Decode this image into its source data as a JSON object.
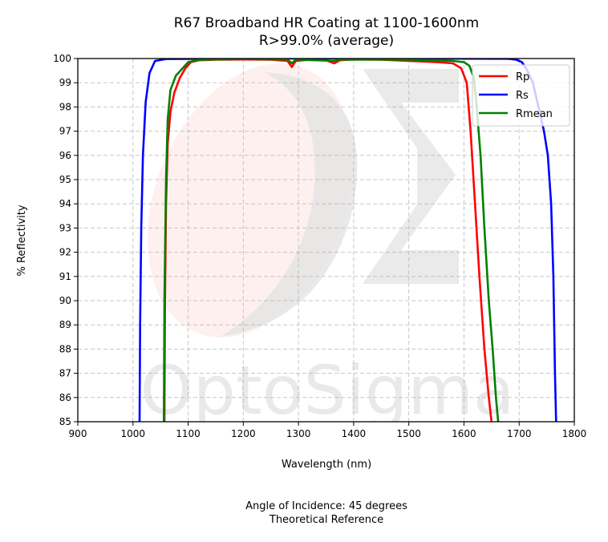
{
  "chart_data": {
    "type": "line",
    "title": "R67 Broadband HR Coating at 1100-1600nm",
    "subtitle": "R>99.0% (average)",
    "xlabel": "Wavelength (nm)",
    "ylabel": "% Reflectivity",
    "xlim": [
      900,
      1800
    ],
    "ylim": [
      85,
      100
    ],
    "xticks": [
      900,
      1000,
      1100,
      1200,
      1300,
      1400,
      1500,
      1600,
      1700,
      1800
    ],
    "yticks": [
      85,
      86,
      87,
      88,
      89,
      90,
      91,
      92,
      93,
      94,
      95,
      96,
      97,
      98,
      99,
      100
    ],
    "grid": true,
    "legend_position": "top-right",
    "footnotes": [
      "Angle of Incidence: 45 degrees",
      "Theoretical Reference"
    ],
    "watermark": {
      "text": "OptoSigma",
      "logo": "sigma-logo"
    },
    "series": [
      {
        "name": "Rp",
        "color": "#ff0000",
        "points": [
          [
            1057,
            85
          ],
          [
            1058,
            90
          ],
          [
            1060,
            94
          ],
          [
            1063,
            96.5
          ],
          [
            1068,
            97.8
          ],
          [
            1075,
            98.6
          ],
          [
            1085,
            99.2
          ],
          [
            1095,
            99.6
          ],
          [
            1105,
            99.85
          ],
          [
            1120,
            99.93
          ],
          [
            1150,
            99.95
          ],
          [
            1200,
            99.96
          ],
          [
            1250,
            99.95
          ],
          [
            1280,
            99.9
          ],
          [
            1288,
            99.65
          ],
          [
            1295,
            99.9
          ],
          [
            1320,
            99.95
          ],
          [
            1350,
            99.93
          ],
          [
            1365,
            99.8
          ],
          [
            1375,
            99.93
          ],
          [
            1400,
            99.96
          ],
          [
            1450,
            99.95
          ],
          [
            1500,
            99.9
          ],
          [
            1550,
            99.85
          ],
          [
            1580,
            99.8
          ],
          [
            1595,
            99.6
          ],
          [
            1605,
            99
          ],
          [
            1612,
            97
          ],
          [
            1620,
            94
          ],
          [
            1628,
            91
          ],
          [
            1637,
            88
          ],
          [
            1645,
            86
          ],
          [
            1650,
            85
          ]
        ]
      },
      {
        "name": "Rs",
        "color": "#0000ff",
        "points": [
          [
            1012,
            85
          ],
          [
            1013,
            89
          ],
          [
            1015,
            93
          ],
          [
            1018,
            96
          ],
          [
            1023,
            98.2
          ],
          [
            1030,
            99.4
          ],
          [
            1040,
            99.9
          ],
          [
            1060,
            99.98
          ],
          [
            1200,
            100
          ],
          [
            1500,
            100
          ],
          [
            1680,
            99.99
          ],
          [
            1695,
            99.95
          ],
          [
            1705,
            99.85
          ],
          [
            1715,
            99.5
          ],
          [
            1725,
            99
          ],
          [
            1735,
            98
          ],
          [
            1745,
            97
          ],
          [
            1752,
            96
          ],
          [
            1758,
            94
          ],
          [
            1762,
            91
          ],
          [
            1765,
            87
          ],
          [
            1767,
            85
          ]
        ]
      },
      {
        "name": "Rmean",
        "color": "#008000",
        "points": [
          [
            1056,
            85
          ],
          [
            1057,
            90
          ],
          [
            1060,
            95
          ],
          [
            1063,
            97.5
          ],
          [
            1068,
            98.7
          ],
          [
            1078,
            99.3
          ],
          [
            1090,
            99.6
          ],
          [
            1100,
            99.85
          ],
          [
            1120,
            99.95
          ],
          [
            1200,
            99.98
          ],
          [
            1280,
            99.96
          ],
          [
            1288,
            99.8
          ],
          [
            1295,
            99.96
          ],
          [
            1365,
            99.9
          ],
          [
            1375,
            99.96
          ],
          [
            1500,
            99.95
          ],
          [
            1580,
            99.9
          ],
          [
            1600,
            99.85
          ],
          [
            1610,
            99.7
          ],
          [
            1618,
            99.2
          ],
          [
            1623,
            98
          ],
          [
            1630,
            96
          ],
          [
            1637,
            93
          ],
          [
            1645,
            90
          ],
          [
            1652,
            88
          ],
          [
            1658,
            86
          ],
          [
            1662,
            85
          ]
        ]
      }
    ]
  }
}
